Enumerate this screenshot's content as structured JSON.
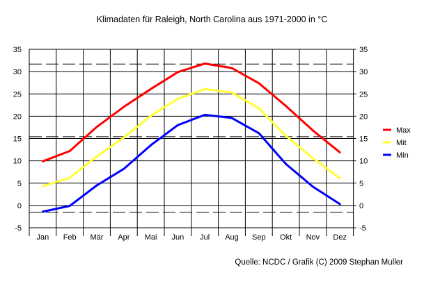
{
  "chart_data": {
    "type": "line",
    "title": "Klimadaten für Raleigh, North Carolina aus 1971-2000 in °C",
    "xlabel": "",
    "ylabel": "",
    "categories": [
      "Jan",
      "Feb",
      "Mär",
      "Apr",
      "Mai",
      "Jun",
      "Jul",
      "Aug",
      "Sep",
      "Okt",
      "Nov",
      "Dez"
    ],
    "ylim": [
      -5,
      35
    ],
    "yticks": [
      -5,
      0,
      5,
      10,
      15,
      20,
      25,
      30,
      35
    ],
    "ytick_labels": [
      "-5",
      "0",
      "5",
      "10",
      "15",
      "20",
      "25",
      "30",
      "35"
    ],
    "grid": true,
    "legend_position": "right",
    "series": [
      {
        "name": "Max",
        "color": "#ff0000",
        "values": [
          9.9,
          12.2,
          17.6,
          22.1,
          26.1,
          29.9,
          31.8,
          30.8,
          27.4,
          22.3,
          16.8,
          11.9
        ]
      },
      {
        "name": "Mit",
        "color": "#ffff33",
        "values": [
          4.3,
          6.2,
          11.0,
          15.2,
          20.1,
          23.9,
          26.1,
          25.3,
          21.8,
          15.6,
          10.6,
          6.1
        ]
      },
      {
        "name": "Min",
        "color": "#0000ff",
        "values": [
          -1.4,
          -0.1,
          4.5,
          8.2,
          13.5,
          18.0,
          20.3,
          19.6,
          16.2,
          9.3,
          4.2,
          0.3
        ]
      }
    ],
    "reference_lines": [
      31.7,
      15.4,
      -1.5
    ]
  },
  "footer": "Quelle: NCDC / Grafik (C) 2009 Stephan Muller"
}
